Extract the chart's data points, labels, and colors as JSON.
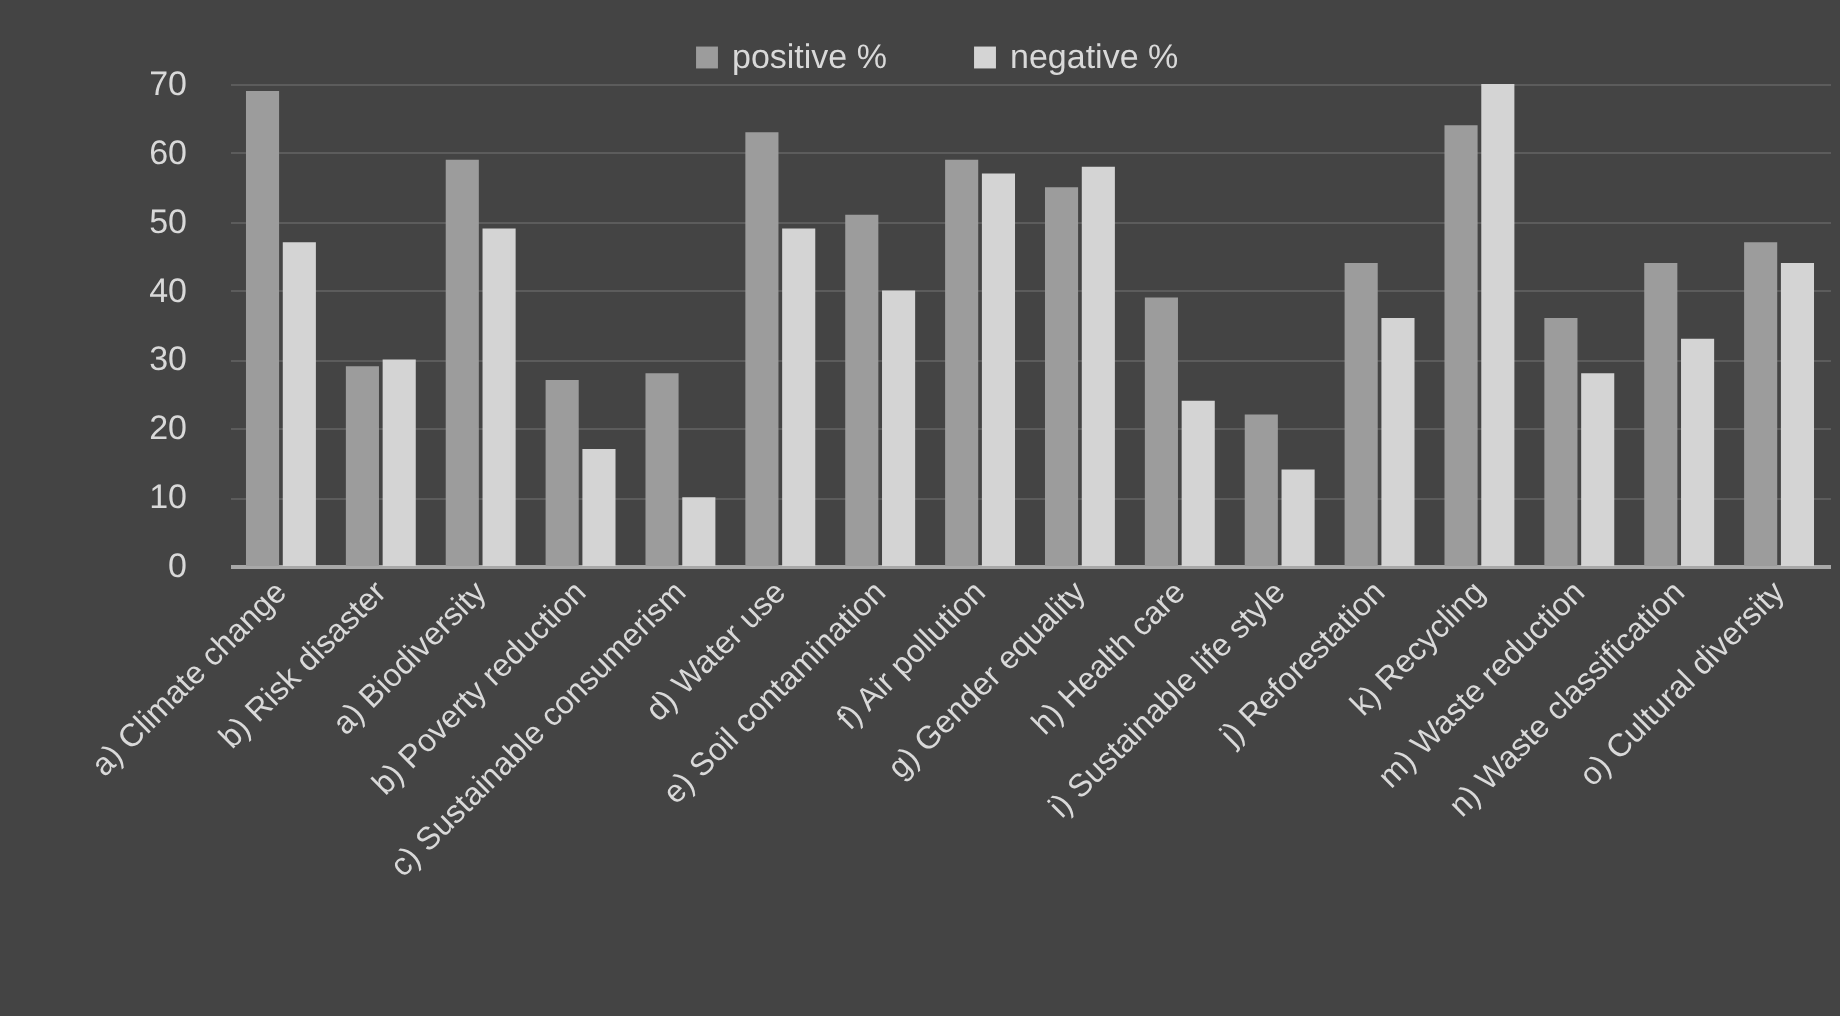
{
  "chart_data": {
    "type": "bar",
    "categories": [
      "a) Climate change",
      "b) Risk disaster",
      "a) Biodiversity",
      "b) Poverty reduction",
      "c) Sustainable consumerism",
      "d) Water use",
      "e) Soil contamination",
      "f) Air pollution",
      "g) Gender equality",
      "h) Health care",
      "i) Sustainable life style",
      "j) Reforestation",
      "k) Recycling",
      "m) Waste reduction",
      "n) Waste classification",
      "o) Cultural diversity"
    ],
    "series": [
      {
        "name": "positive %",
        "color": "#9c9c9c",
        "values": [
          69,
          29,
          59,
          27,
          28,
          63,
          51,
          59,
          55,
          39,
          22,
          44,
          64,
          36,
          44,
          47
        ]
      },
      {
        "name": "negative %",
        "color": "#d4d4d4",
        "values": [
          47,
          30,
          49,
          17,
          10,
          49,
          40,
          57,
          58,
          24,
          14,
          36,
          70,
          28,
          33,
          44
        ]
      }
    ],
    "ylim": [
      0,
      70
    ],
    "yticks": [
      0,
      10,
      20,
      30,
      40,
      50,
      60,
      70
    ],
    "grid": "y",
    "legend": "top"
  }
}
